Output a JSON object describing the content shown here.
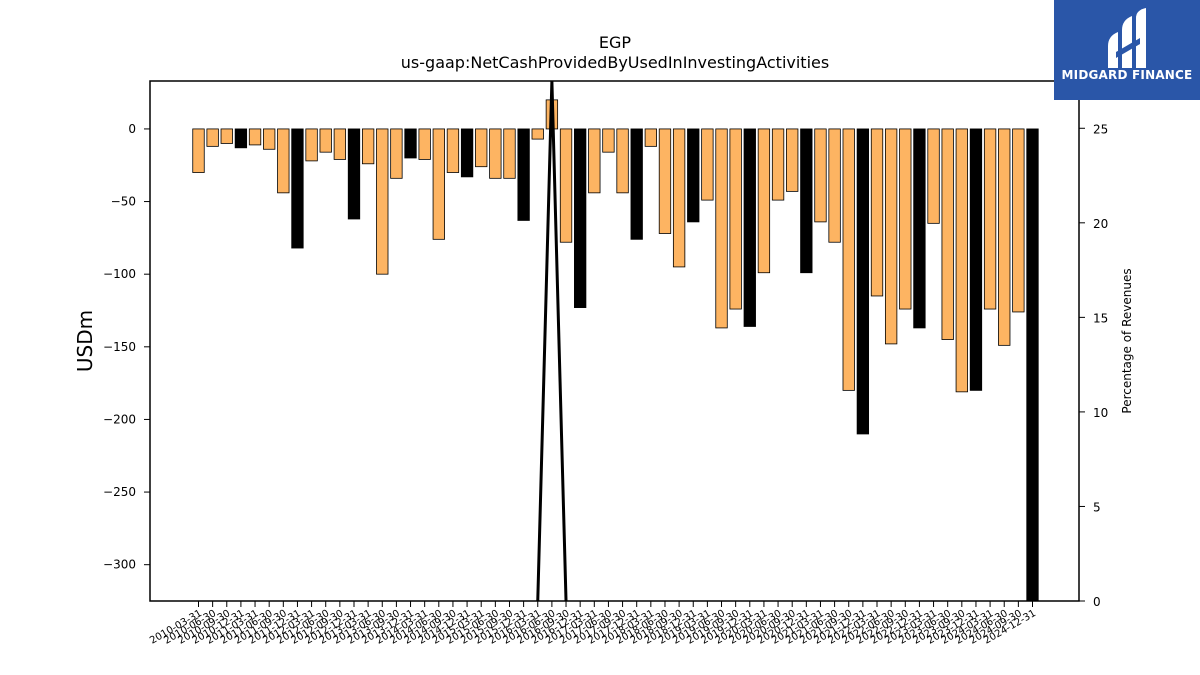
{
  "chart_data": {
    "type": "bar",
    "title": "EGP",
    "subtitle": "us-gaap:NetCashProvidedByUsedInInvestingActivities",
    "ylabel": "USDm",
    "y2label": "Percentage of Revenues",
    "ylim": [
      -325,
      33
    ],
    "y2lim": [
      0,
      27.5
    ],
    "yticks": [
      0,
      -50,
      -100,
      -150,
      -200,
      -250,
      -300
    ],
    "y2ticks": [
      0,
      5,
      10,
      15,
      20,
      25
    ],
    "grid": false,
    "categories": [
      "2010-03-31",
      "2010-06-30",
      "2010-09-30",
      "2010-12-31",
      "2011-03-31",
      "2011-06-30",
      "2011-09-30",
      "2011-12-31",
      "2012-03-31",
      "2012-06-30",
      "2012-09-30",
      "2012-12-31",
      "2013-03-31",
      "2013-06-30",
      "2013-09-30",
      "2013-12-31",
      "2014-03-31",
      "2014-06-30",
      "2014-09-30",
      "2014-12-31",
      "2015-03-31",
      "2015-06-30",
      "2015-09-30",
      "2015-12-31",
      "2016-03-31",
      "2016-06-30",
      "2016-09-30",
      "2016-12-31",
      "2017-03-31",
      "2017-06-30",
      "2017-09-30",
      "2017-12-31",
      "2018-03-31",
      "2018-06-30",
      "2018-09-30",
      "2018-12-31",
      "2019-03-31",
      "2019-06-30",
      "2019-09-30",
      "2019-12-31",
      "2020-03-31",
      "2020-06-30",
      "2020-09-30",
      "2020-12-31",
      "2021-03-31",
      "2021-06-30",
      "2021-09-30",
      "2021-12-31",
      "2022-03-31",
      "2022-06-30",
      "2022-09-30",
      "2022-12-31",
      "2023-03-31",
      "2023-06-30",
      "2023-09-30",
      "2023-12-31",
      "2024-03-31",
      "2024-06-30",
      "2024-09-30",
      "2024-12-31"
    ],
    "series": [
      {
        "color": "#fdb462",
        "highlight_color": "#000000",
        "values": [
          -30,
          -12,
          -10,
          -13,
          -11,
          -14,
          -44,
          -82,
          -22,
          -16,
          -21,
          -62,
          -24,
          -100,
          -34,
          -20,
          -21,
          -76,
          -30,
          -33,
          -26,
          -34,
          -34,
          -63,
          -7,
          20,
          -78,
          -123,
          -44,
          -16,
          -44,
          -76,
          -12,
          -72,
          -95,
          -64,
          -49,
          -137,
          -124,
          -136,
          -99,
          -49,
          -43,
          -99,
          -64,
          -78,
          -180,
          -210,
          -115,
          -148,
          -124,
          -137,
          -65,
          -145,
          -181,
          -180,
          -124,
          -149,
          -126,
          -330
        ],
        "highlighted": [
          false,
          false,
          false,
          true,
          false,
          false,
          false,
          true,
          false,
          false,
          false,
          true,
          false,
          false,
          false,
          true,
          false,
          false,
          false,
          true,
          false,
          false,
          false,
          true,
          false,
          false,
          false,
          true,
          false,
          false,
          false,
          true,
          false,
          false,
          false,
          true,
          false,
          false,
          false,
          true,
          false,
          false,
          false,
          true,
          false,
          false,
          false,
          true,
          false,
          false,
          false,
          true,
          false,
          false,
          false,
          true,
          false,
          false,
          false,
          true
        ]
      }
    ],
    "line": {
      "color": "#000000",
      "points": [
        {
          "index": 24,
          "value": 0
        },
        {
          "index": 25,
          "value": 27.5
        },
        {
          "index": 26,
          "value": 0
        }
      ]
    }
  },
  "logo": {
    "text": "MIDGARD FINANCE"
  }
}
